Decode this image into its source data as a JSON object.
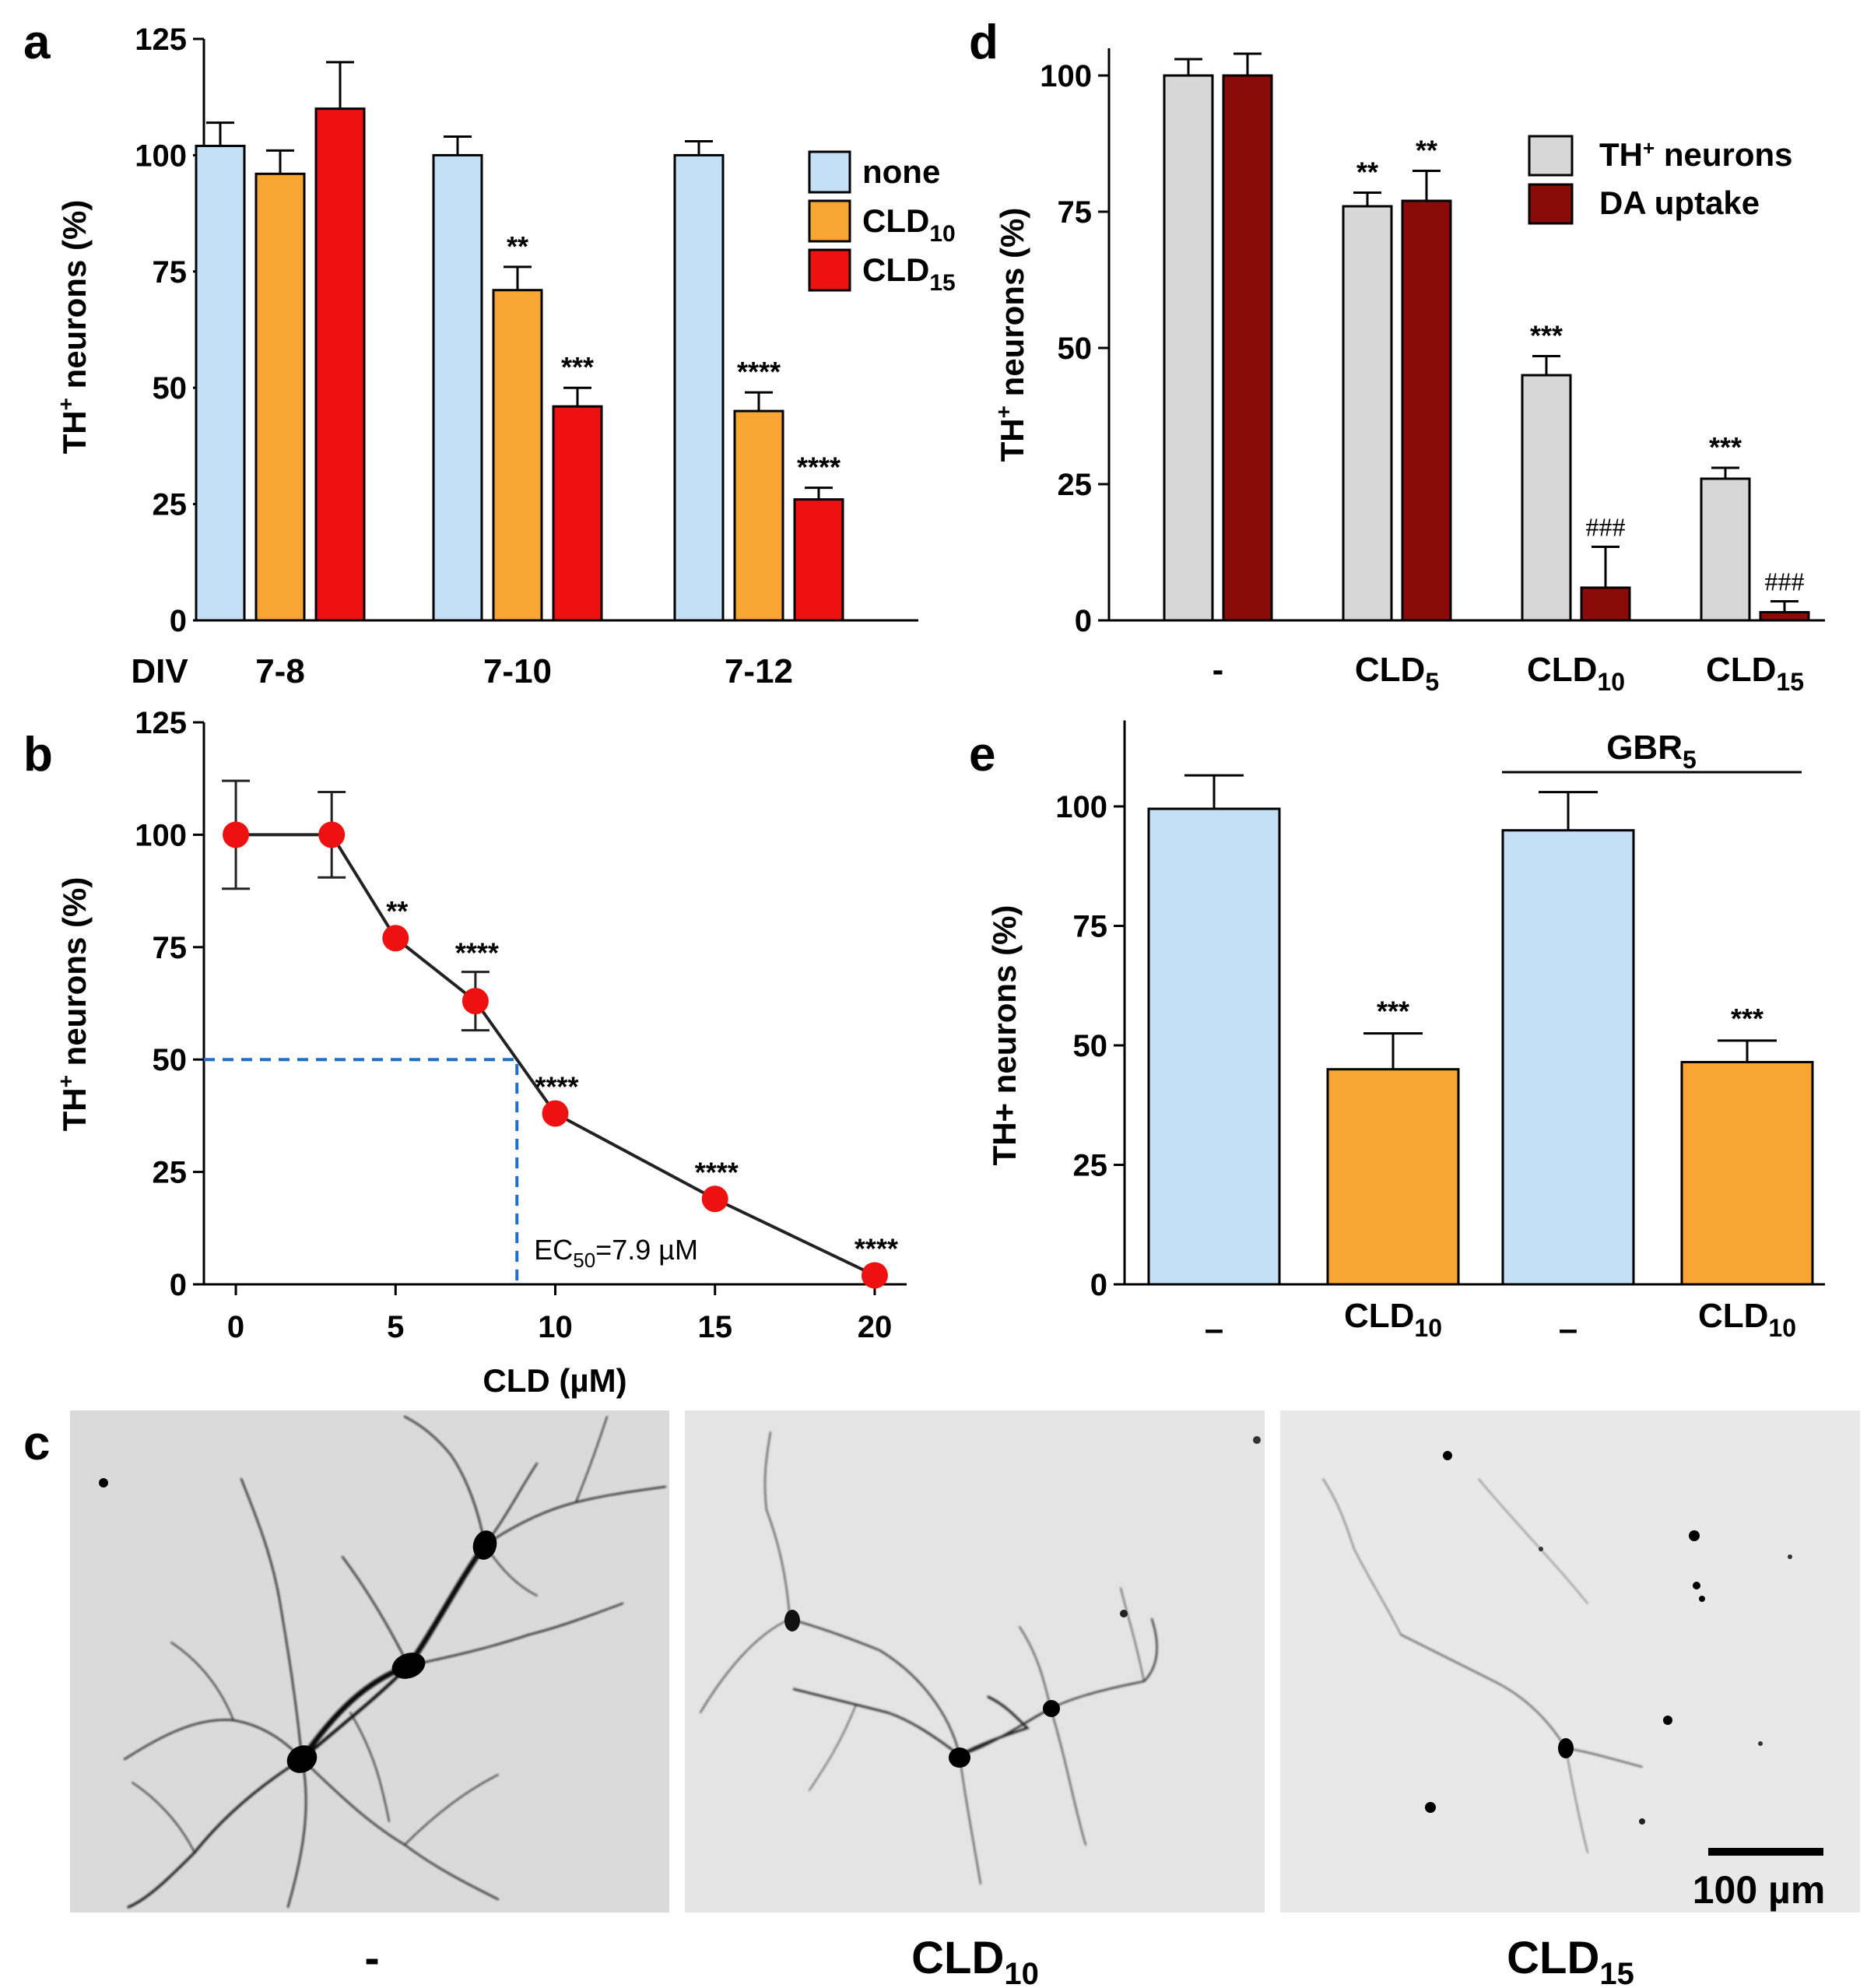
{
  "figure": {
    "panel_labels": {
      "a": "a",
      "b": "b",
      "c": "c",
      "d": "d",
      "e": "e"
    },
    "colors": {
      "none": "#c3e0f7",
      "cld10": "#f8a534",
      "cld15": "#ee1111",
      "th_grey": "#d7d7d7",
      "da_red": "#8b0a0a",
      "point_red": "#ee1111",
      "ec_blue": "#1f6fd0"
    }
  },
  "chart_data": [
    {
      "id": "a",
      "type": "bar",
      "title": "",
      "xlabel": "DIV",
      "ylabel": "TH+ neurons (%)",
      "ylabel_main": "TH",
      "ylabel_sup": "+",
      "ylabel_rest": " neurons (%)",
      "ylim": [
        0,
        125
      ],
      "yticks": [
        "0",
        "25",
        "50",
        "75",
        "100",
        "125"
      ],
      "categories": [
        "7-8",
        "7-10",
        "7-12"
      ],
      "series": [
        {
          "name": "none",
          "label_main": "none",
          "label_sub": "",
          "values": [
            102,
            100,
            100
          ],
          "errors": [
            5,
            4,
            3
          ],
          "sig": [
            "",
            "",
            ""
          ]
        },
        {
          "name": "CLD10",
          "label_main": "CLD",
          "label_sub": "10",
          "values": [
            96,
            71,
            45
          ],
          "errors": [
            5,
            5,
            4
          ],
          "sig": [
            "",
            "**",
            "****"
          ]
        },
        {
          "name": "CLD15",
          "label_main": "CLD",
          "label_sub": "15",
          "values": [
            110,
            46,
            26
          ],
          "errors": [
            10,
            4,
            2.5
          ],
          "sig": [
            "",
            "***",
            "****"
          ]
        }
      ]
    },
    {
      "id": "b",
      "type": "line",
      "title": "",
      "xlabel": "CLD (µM)",
      "ylabel": "TH+ neurons (%)",
      "ylabel_main": "TH",
      "ylabel_sup": "+",
      "ylabel_rest": " neurons (%)",
      "xlim": [
        -1,
        21
      ],
      "ylim": [
        0,
        125
      ],
      "xticks": [
        "0",
        "5",
        "10",
        "15",
        "20"
      ],
      "yticks": [
        "0",
        "25",
        "50",
        "75",
        "100",
        "125"
      ],
      "x": [
        0,
        3,
        5,
        7.5,
        10,
        15,
        20
      ],
      "y": [
        100,
        100,
        77,
        63,
        38,
        19,
        2
      ],
      "errors": [
        12,
        9.5,
        0,
        6.5,
        0,
        0,
        0
      ],
      "sig": [
        "",
        "",
        "**",
        "****",
        "****",
        "****",
        "****"
      ],
      "ec50_main": "EC",
      "ec50_sub": "50",
      "ec50_rest": "=7.9 µM",
      "ec50_x": 8.8,
      "ec50_y": 50
    },
    {
      "id": "d",
      "type": "bar",
      "title": "",
      "xlabel": "",
      "ylabel": "TH+ neurons (%)",
      "ylabel_main": "TH",
      "ylabel_sup": "+",
      "ylabel_rest": " neurons (%)",
      "ylim": [
        0,
        105
      ],
      "yticks": [
        "0",
        "25",
        "50",
        "75",
        "100"
      ],
      "categories": [
        {
          "main": "-",
          "sub": ""
        },
        {
          "main": "CLD",
          "sub": "5"
        },
        {
          "main": "CLD",
          "sub": "10"
        },
        {
          "main": "CLD",
          "sub": "15"
        }
      ],
      "series": [
        {
          "name": "TH+ neurons",
          "label_main": "TH",
          "label_sup": "+",
          "label_rest": " neurons",
          "values": [
            100,
            76,
            45,
            26
          ],
          "errors": [
            3,
            2.5,
            3.5,
            2
          ],
          "sig": [
            "",
            "**",
            "***",
            "***"
          ]
        },
        {
          "name": "DA uptake",
          "label_main": "DA uptake",
          "label_sup": "",
          "label_rest": "",
          "values": [
            100,
            77,
            6,
            1.5
          ],
          "errors": [
            4,
            5.5,
            7.5,
            2
          ],
          "sig": [
            "",
            "**",
            "###",
            "###"
          ]
        }
      ]
    },
    {
      "id": "e",
      "type": "bar",
      "title": "",
      "xlabel": "",
      "ylabel": "TH+ neurons (%)",
      "ylim": [
        0,
        118
      ],
      "yticks": [
        "0",
        "25",
        "50",
        "75",
        "100"
      ],
      "group_main": "GBR",
      "group_sub": "5",
      "categories": [
        {
          "main": "–",
          "sub": ""
        },
        {
          "main": "CLD",
          "sub": "10"
        },
        {
          "main": "–",
          "sub": ""
        },
        {
          "main": "CLD",
          "sub": "10"
        }
      ],
      "values": [
        99.5,
        45,
        95,
        46.5
      ],
      "errors": [
        7,
        7.5,
        8,
        4.5
      ],
      "bar_colors": [
        "none",
        "cld10",
        "none",
        "cld10"
      ],
      "sig": [
        "",
        "***",
        "",
        "***"
      ]
    }
  ],
  "micrographs": {
    "labels": [
      {
        "main": "-",
        "sub": ""
      },
      {
        "main": "CLD",
        "sub": "10"
      },
      {
        "main": "CLD",
        "sub": "15"
      }
    ],
    "scale_bar": "100 µm"
  }
}
